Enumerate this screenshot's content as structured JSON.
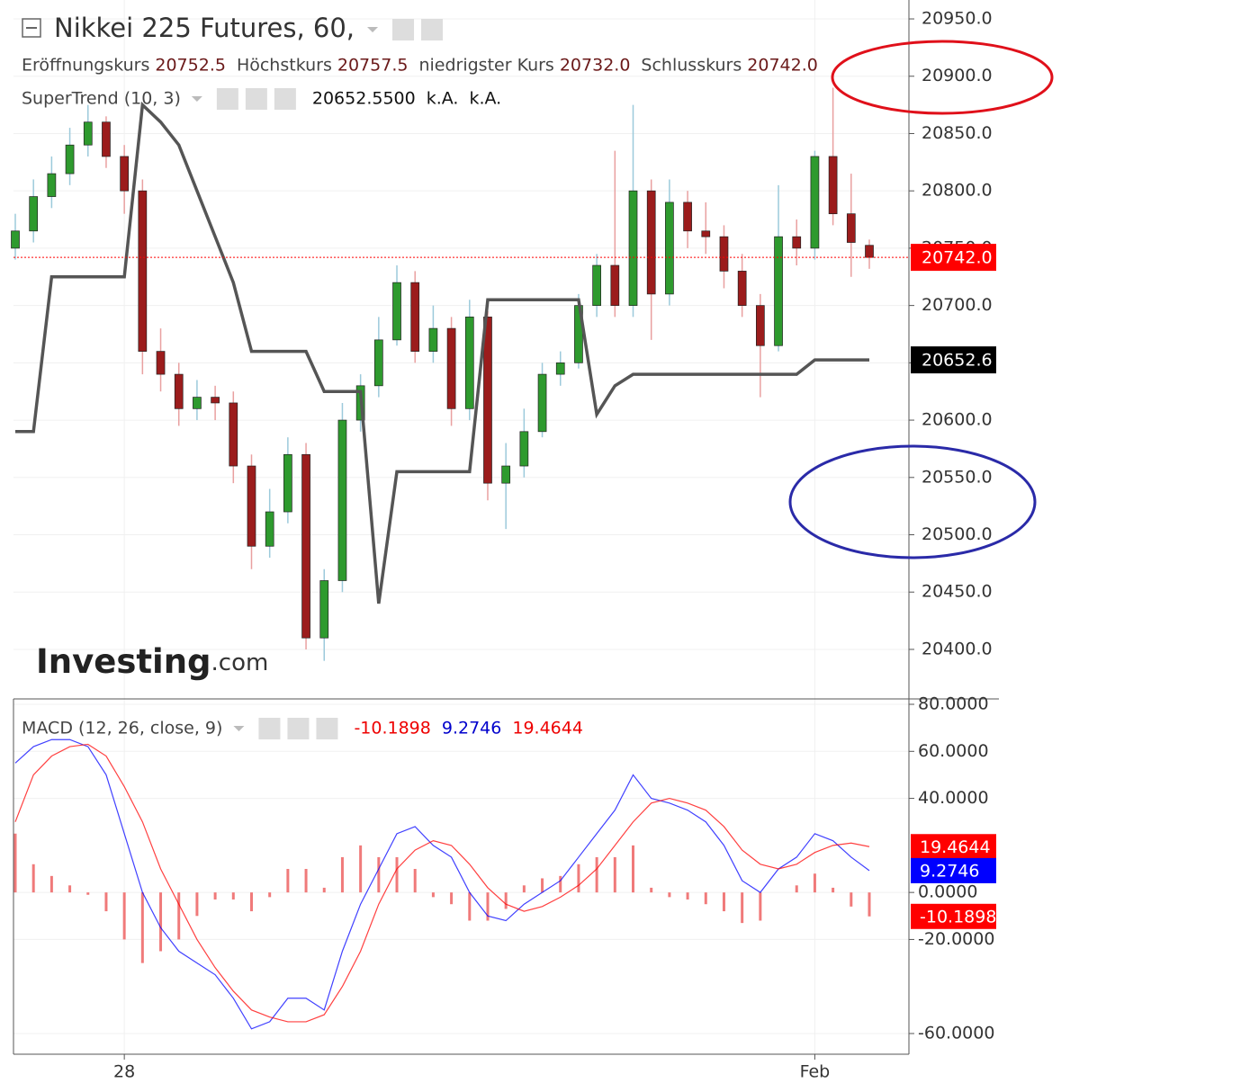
{
  "chart_data": [
    {
      "type": "candlestick",
      "title": "Nikkei 225 Futures, 60,",
      "legend": [
        {
          "name": "Eröffnungskurs",
          "value": "20752.5"
        },
        {
          "name": "Höchstkurs",
          "value": "20757.5"
        },
        {
          "name": "niedrigster Kurs",
          "value": "20732.0"
        },
        {
          "name": "Schlusskurs",
          "value": "20742.0"
        }
      ],
      "categories": [
        null,
        null,
        null,
        null,
        null,
        null,
        "28",
        null,
        null,
        null,
        null,
        null,
        null,
        null,
        null,
        null,
        null,
        null,
        null,
        null,
        null,
        null,
        null,
        null,
        null,
        null,
        null,
        null,
        null,
        null,
        null,
        null,
        null,
        null,
        null,
        null,
        null,
        null,
        null,
        null,
        null,
        null,
        null,
        null,
        "Feb",
        null,
        null,
        null
      ],
      "open": [
        20750,
        20765,
        20795,
        20815,
        20840,
        20860,
        20830,
        20800,
        20660,
        20640,
        20610,
        20620,
        20615,
        20560,
        20490,
        20520,
        20570,
        20410,
        20460,
        20600,
        20630,
        20670,
        20720,
        20660,
        20680,
        20610,
        20690,
        20545,
        20560,
        20590,
        20640,
        20650,
        20700,
        20735,
        20700,
        20800,
        20710,
        20790,
        20765,
        20760,
        20730,
        20700,
        20665,
        20760,
        20750,
        20830,
        20780,
        20752.5
      ],
      "high": [
        20780,
        20810,
        20830,
        20855,
        20875,
        20865,
        20840,
        20810,
        20680,
        20650,
        20635,
        20630,
        20625,
        20570,
        20540,
        20585,
        20580,
        20470,
        20615,
        20640,
        20690,
        20735,
        20730,
        20700,
        20690,
        20705,
        20695,
        20580,
        20610,
        20650,
        20660,
        20710,
        20745,
        20835,
        20875,
        20810,
        20810,
        20800,
        20790,
        20770,
        20745,
        20710,
        20805,
        20775,
        20835,
        20890,
        20815,
        20757.5
      ],
      "low": [
        20740,
        20755,
        20785,
        20805,
        20830,
        20820,
        20780,
        20640,
        20625,
        20595,
        20600,
        20600,
        20545,
        20470,
        20480,
        20510,
        20400,
        20390,
        20450,
        20590,
        20620,
        20665,
        20650,
        20650,
        20595,
        20600,
        20530,
        20505,
        20550,
        20585,
        20630,
        20645,
        20690,
        20690,
        20690,
        20670,
        20700,
        20750,
        20745,
        20715,
        20690,
        20620,
        20660,
        20735,
        20740,
        20770,
        20725,
        20732
      ],
      "close": [
        20765,
        20795,
        20815,
        20840,
        20860,
        20830,
        20800,
        20660,
        20640,
        20610,
        20620,
        20615,
        20560,
        20490,
        20520,
        20570,
        20410,
        20460,
        20600,
        20630,
        20670,
        20720,
        20660,
        20680,
        20610,
        20690,
        20545,
        20560,
        20590,
        20640,
        20650,
        20700,
        20735,
        20700,
        20800,
        20710,
        20790,
        20765,
        20760,
        20730,
        20700,
        20665,
        20760,
        20750,
        20830,
        20780,
        20755,
        20742
      ],
      "up_color": "#2e9a2e",
      "down_color": "#9b1c1c",
      "supertrend": {
        "name": "SuperTrend (10, 3)",
        "color": "#555555",
        "legend_values": [
          "20652.5500",
          "k.A.",
          "k.A."
        ],
        "values": [
          20590,
          20590,
          20725,
          20725,
          20725,
          20725,
          20725,
          20875,
          20860,
          20840,
          20800,
          20760,
          20720,
          20660,
          20660,
          20660,
          20660,
          20625,
          20625,
          20625,
          20440,
          20555,
          20555,
          20555,
          20555,
          20555,
          20705,
          20705,
          20705,
          20705,
          20705,
          20705,
          20605,
          20630,
          20640,
          20640,
          20640,
          20640,
          20640,
          20640,
          20640,
          20640,
          20640,
          20640,
          20652.55,
          20652.55,
          20652.55,
          20652.55
        ]
      },
      "price_labels": [
        {
          "value": 20742,
          "label": "20742.0",
          "color": "#ff0000"
        },
        {
          "value": 20652.55,
          "label": "20652.6",
          "color": "#000000"
        }
      ],
      "ylim": [
        20356.8,
        20966.5
      ],
      "yticks": [
        {
          "value": 20400,
          "label": "20400.0"
        },
        {
          "value": 20450,
          "label": "20450.0"
        },
        {
          "value": 20500,
          "label": "20500.0"
        },
        {
          "value": 20550,
          "label": "20550.0"
        },
        {
          "value": 20600,
          "label": "20600.0"
        },
        {
          "value": 20650,
          "label": "20650.0"
        },
        {
          "value": 20700,
          "label": "20700.0"
        },
        {
          "value": 20750,
          "label": "20750.0"
        },
        {
          "value": 20800,
          "label": "20800.0"
        },
        {
          "value": 20850,
          "label": "20850.0"
        },
        {
          "value": 20900,
          "label": "20900.0"
        },
        {
          "value": 20950,
          "label": "20950.0"
        }
      ],
      "grid": true,
      "watermark": [
        "Investing",
        ".com"
      ]
    },
    {
      "type": "macd",
      "title": "MACD (12, 26, close, 9)",
      "histogram": {
        "color": "#f07a7a",
        "values": [
          25,
          12,
          7,
          3,
          -1,
          -8,
          -20,
          -30,
          -25,
          -20,
          -10,
          -3,
          -3,
          -8,
          -2,
          10,
          10,
          2,
          15,
          20,
          15,
          15,
          10,
          -2,
          -5,
          -12,
          -12,
          -7,
          3,
          6,
          7,
          12,
          15,
          15,
          20,
          2,
          -2,
          -3,
          -5,
          -8,
          -13,
          -12,
          0,
          3,
          8,
          2,
          -6,
          -10.1898
        ]
      },
      "macd": {
        "color": "#0000ff",
        "values": [
          55,
          62,
          65,
          65,
          62,
          50,
          25,
          0,
          -15,
          -25,
          -30,
          -35,
          -45,
          -58,
          -55,
          -45,
          -45,
          -50,
          -25,
          -5,
          10,
          25,
          28,
          20,
          15,
          0,
          -10,
          -12,
          -5,
          0,
          5,
          15,
          25,
          35,
          50,
          40,
          38,
          35,
          30,
          20,
          5,
          0,
          10,
          15,
          25,
          22,
          15,
          9.2746
        ]
      },
      "signal": {
        "color": "#ff0000",
        "values": [
          30,
          50,
          58,
          62,
          63,
          58,
          45,
          30,
          10,
          -5,
          -20,
          -32,
          -42,
          -50,
          -53,
          -55,
          -55,
          -52,
          -40,
          -25,
          -5,
          10,
          18,
          22,
          20,
          12,
          2,
          -5,
          -8,
          -6,
          -2,
          3,
          10,
          20,
          30,
          38,
          40,
          38,
          35,
          28,
          18,
          12,
          10,
          12,
          17,
          20,
          21,
          19.4644
        ]
      },
      "ylim": [
        -68.8,
        82.3
      ],
      "yticks": [
        {
          "value": -60,
          "label": "-60.0000"
        },
        {
          "value": -20,
          "label": "-20.0000"
        },
        {
          "value": 0,
          "label": "0.0000"
        },
        {
          "value": 40,
          "label": "40.0000"
        },
        {
          "value": 60,
          "label": "60.0000"
        },
        {
          "value": 80,
          "label": "80.0000"
        }
      ]
    }
  ]
}
